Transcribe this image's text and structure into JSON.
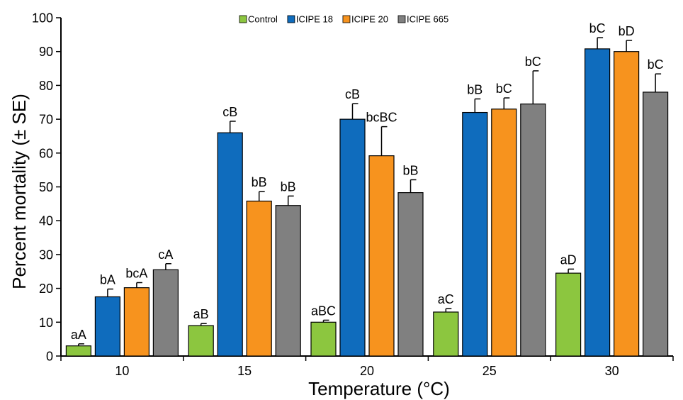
{
  "chart_data": {
    "type": "bar",
    "title": "",
    "xlabel": "Temperature (°C)",
    "ylabel": "Percent mortality (± SE)",
    "ylim": [
      0,
      100
    ],
    "yticks": [
      0,
      10,
      20,
      30,
      40,
      50,
      60,
      70,
      80,
      90,
      100
    ],
    "categories": [
      "10",
      "15",
      "20",
      "25",
      "30"
    ],
    "legend_position": "top-center",
    "grid": false,
    "series": [
      {
        "name": "Control",
        "color": "#8cc63f",
        "values": [
          3,
          9,
          10,
          13,
          24.5
        ],
        "errors": [
          0.6,
          0.6,
          0.6,
          1.0,
          1.2
        ],
        "labels": [
          "aA",
          "aB",
          "aBC",
          "aC",
          "aD"
        ]
      },
      {
        "name": "ICIPE 18",
        "color": "#0f6cbd",
        "values": [
          17.5,
          66,
          70,
          72,
          90.8
        ],
        "errors": [
          2.3,
          3.4,
          4.6,
          4.0,
          3.3
        ],
        "labels": [
          "bA",
          "cB",
          "cB",
          "bB",
          "bC"
        ]
      },
      {
        "name": "ICIPE 20",
        "color": "#f7931e",
        "values": [
          20.2,
          45.8,
          59.2,
          73,
          90
        ],
        "errors": [
          1.5,
          2.8,
          8.6,
          3.3,
          3.3
        ],
        "labels": [
          "bcA",
          "bB",
          "bcBC",
          "bC",
          "bD"
        ]
      },
      {
        "name": "ICIPE 665",
        "color": "#808080",
        "values": [
          25.5,
          44.5,
          48.3,
          74.5,
          78
        ],
        "errors": [
          1.8,
          2.8,
          3.8,
          9.8,
          5.4
        ],
        "labels": [
          "cA",
          "bB",
          "bB",
          "bC",
          "bC"
        ]
      }
    ]
  }
}
